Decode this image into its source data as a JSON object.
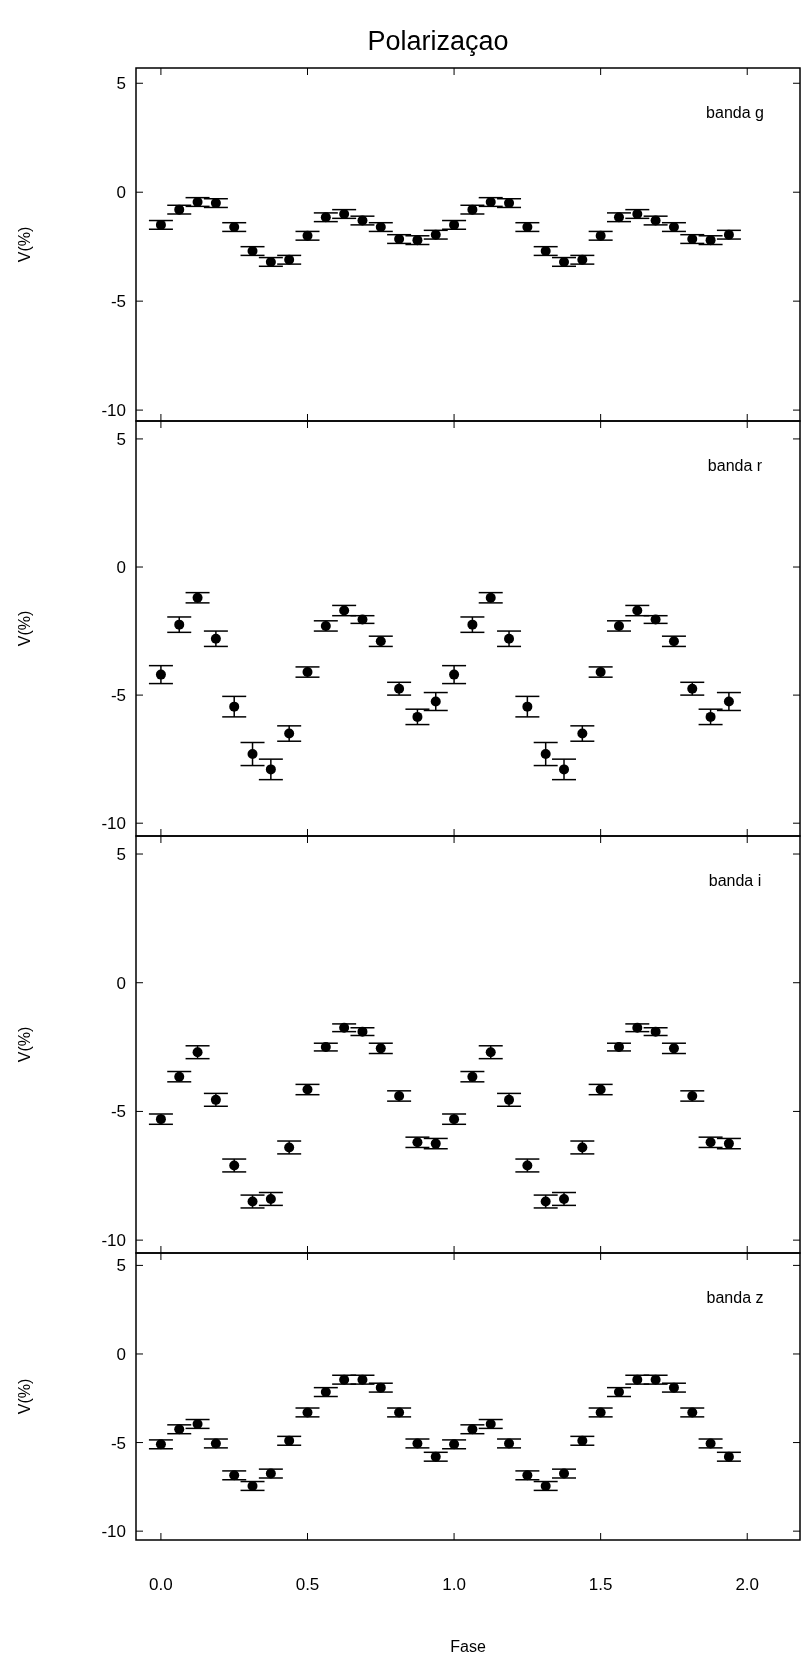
{
  "chart_data": [
    {
      "type": "scatter",
      "title": "Polarizaçao",
      "ylabel": "V(%)",
      "annotations": [
        "banda g"
      ],
      "marker": "circle",
      "tick_labels": "y",
      "xlim": [
        -0.085,
        2.18
      ],
      "ylim": [
        -10.5,
        5.7
      ],
      "xticks": [
        {
          "value": 0,
          "label": null
        },
        {
          "value": 0.5,
          "label": null
        },
        {
          "value": 1,
          "label": null
        },
        {
          "value": 1.5,
          "label": null
        },
        {
          "value": 2,
          "label": null
        }
      ],
      "yticks": [
        -10,
        -5,
        0,
        5
      ],
      "series": [
        {
          "color": "#000000",
          "x": [
            0,
            0.0625,
            0.125,
            0.1875,
            0.25,
            0.3125,
            0.375,
            0.4375,
            0.5,
            0.5625,
            0.625,
            0.6875,
            0.75,
            0.8125,
            0.875,
            0.9375,
            1,
            1.0625,
            1.125,
            1.1875,
            1.25,
            1.3125,
            1.375,
            1.4375,
            1.5,
            1.5625,
            1.625,
            1.6875,
            1.75,
            1.8125,
            1.875,
            1.9375
          ],
          "values": [
            -1.5,
            -0.8,
            -0.45,
            -0.5,
            -1.6,
            -2.7,
            -3.2,
            -3.1,
            -2.0,
            -1.15,
            -1.0,
            -1.3,
            -1.6,
            -2.15,
            -2.2,
            -1.95,
            -1.5,
            -0.8,
            -0.45,
            -0.5,
            -1.6,
            -2.7,
            -3.2,
            -3.1,
            -2.0,
            -1.15,
            -1.0,
            -1.3,
            -1.6,
            -2.15,
            -2.2,
            -1.95
          ],
          "errors": [
            0.2,
            0.2,
            0.2,
            0.2,
            0.2,
            0.2,
            0.2,
            0.2,
            0.2,
            0.2,
            0.2,
            0.2,
            0.2,
            0.2,
            0.2,
            0.2,
            0.2,
            0.2,
            0.2,
            0.2,
            0.2,
            0.2,
            0.2,
            0.2,
            0.2,
            0.2,
            0.2,
            0.2,
            0.2,
            0.2,
            0.2,
            0.2
          ]
        }
      ]
    },
    {
      "type": "scatter",
      "ylabel": "V(%)",
      "annotations": [
        "banda r"
      ],
      "marker": "circle",
      "tick_labels": "y",
      "xlim": [
        -0.085,
        2.18
      ],
      "ylim": [
        -10.5,
        5.7
      ],
      "xticks": [
        {
          "value": 0,
          "label": null
        },
        {
          "value": 0.5,
          "label": null
        },
        {
          "value": 1,
          "label": null
        },
        {
          "value": 1.5,
          "label": null
        },
        {
          "value": 2,
          "label": null
        }
      ],
      "yticks": [
        -10,
        -5,
        0,
        5
      ],
      "series": [
        {
          "color": "#000000",
          "x": [
            0,
            0.0625,
            0.125,
            0.1875,
            0.25,
            0.3125,
            0.375,
            0.4375,
            0.5,
            0.5625,
            0.625,
            0.6875,
            0.75,
            0.8125,
            0.875,
            0.9375,
            1,
            1.0625,
            1.125,
            1.1875,
            1.25,
            1.3125,
            1.375,
            1.4375,
            1.5,
            1.5625,
            1.625,
            1.6875,
            1.75,
            1.8125,
            1.875,
            1.9375
          ],
          "values": [
            -4.2,
            -2.25,
            -1.2,
            -2.8,
            -5.45,
            -7.3,
            -7.9,
            -6.5,
            -4.1,
            -2.3,
            -1.7,
            -2.05,
            -2.9,
            -4.75,
            -5.85,
            -5.25,
            -4.2,
            -2.25,
            -1.2,
            -2.8,
            -5.45,
            -7.3,
            -7.9,
            -6.5,
            -4.1,
            -2.3,
            -1.7,
            -2.05,
            -2.9,
            -4.75,
            -5.85,
            -5.25
          ],
          "errors": [
            0.35,
            0.3,
            0.2,
            0.3,
            0.4,
            0.45,
            0.4,
            0.3,
            0.2,
            0.2,
            0.2,
            0.15,
            0.2,
            0.25,
            0.3,
            0.35,
            0.35,
            0.3,
            0.2,
            0.3,
            0.4,
            0.45,
            0.4,
            0.3,
            0.2,
            0.2,
            0.2,
            0.15,
            0.2,
            0.25,
            0.3,
            0.35
          ]
        }
      ]
    },
    {
      "type": "scatter",
      "ylabel": "V(%)",
      "annotations": [
        "banda i"
      ],
      "marker": "circle",
      "tick_labels": "y",
      "xlim": [
        -0.085,
        2.18
      ],
      "ylim": [
        -10.5,
        5.7
      ],
      "xticks": [
        {
          "value": 0,
          "label": null
        },
        {
          "value": 0.5,
          "label": null
        },
        {
          "value": 1,
          "label": null
        },
        {
          "value": 1.5,
          "label": null
        },
        {
          "value": 2,
          "label": null
        }
      ],
      "yticks": [
        -10,
        -5,
        0,
        5
      ],
      "series": [
        {
          "color": "#000000",
          "x": [
            0,
            0.0625,
            0.125,
            0.1875,
            0.25,
            0.3125,
            0.375,
            0.4375,
            0.5,
            0.5625,
            0.625,
            0.6875,
            0.75,
            0.8125,
            0.875,
            0.9375,
            1,
            1.0625,
            1.125,
            1.1875,
            1.25,
            1.3125,
            1.375,
            1.4375,
            1.5,
            1.5625,
            1.625,
            1.6875,
            1.75,
            1.8125,
            1.875,
            1.9375
          ],
          "values": [
            -5.3,
            -3.65,
            -2.7,
            -4.55,
            -7.1,
            -8.5,
            -8.4,
            -6.4,
            -4.15,
            -2.5,
            -1.75,
            -1.9,
            -2.55,
            -4.4,
            -6.2,
            -6.25,
            -5.3,
            -3.65,
            -2.7,
            -4.55,
            -7.1,
            -8.5,
            -8.4,
            -6.4,
            -4.15,
            -2.5,
            -1.75,
            -1.9,
            -2.55,
            -4.4,
            -6.2,
            -6.25
          ],
          "errors": [
            0.2,
            0.2,
            0.25,
            0.25,
            0.25,
            0.25,
            0.25,
            0.25,
            0.2,
            0.15,
            0.15,
            0.15,
            0.2,
            0.2,
            0.2,
            0.2,
            0.2,
            0.2,
            0.25,
            0.25,
            0.25,
            0.25,
            0.25,
            0.25,
            0.2,
            0.15,
            0.15,
            0.15,
            0.2,
            0.2,
            0.2,
            0.2
          ]
        }
      ]
    },
    {
      "type": "scatter",
      "ylabel": "V(%)",
      "xlabel": "Fase",
      "annotations": [
        "banda z"
      ],
      "marker": "circle",
      "xlim": [
        -0.085,
        2.18
      ],
      "ylim": [
        -10.5,
        5.7
      ],
      "xticks": [
        {
          "value": 0,
          "label": "0.0"
        },
        {
          "value": 0.5,
          "label": "0.5"
        },
        {
          "value": 1,
          "label": "1.0"
        },
        {
          "value": 1.5,
          "label": "1.5"
        },
        {
          "value": 2,
          "label": "2.0"
        }
      ],
      "yticks": [
        -10,
        -5,
        0,
        5
      ],
      "series": [
        {
          "color": "#000000",
          "x": [
            0,
            0.0625,
            0.125,
            0.1875,
            0.25,
            0.3125,
            0.375,
            0.4375,
            0.5,
            0.5625,
            0.625,
            0.6875,
            0.75,
            0.8125,
            0.875,
            0.9375,
            1,
            1.0625,
            1.125,
            1.1875,
            1.25,
            1.3125,
            1.375,
            1.4375,
            1.5,
            1.5625,
            1.625,
            1.6875,
            1.75,
            1.8125,
            1.875,
            1.9375
          ],
          "values": [
            -5.1,
            -4.25,
            -3.95,
            -5.05,
            -6.85,
            -7.45,
            -6.75,
            -4.9,
            -3.3,
            -2.15,
            -1.45,
            -1.45,
            -1.9,
            -3.3,
            -5.05,
            -5.8,
            -5.1,
            -4.25,
            -3.95,
            -5.05,
            -6.85,
            -7.45,
            -6.75,
            -4.9,
            -3.3,
            -2.15,
            -1.45,
            -1.45,
            -1.9,
            -3.3,
            -5.05,
            -5.8
          ],
          "errors": [
            0.25,
            0.25,
            0.25,
            0.25,
            0.25,
            0.25,
            0.25,
            0.25,
            0.25,
            0.25,
            0.25,
            0.25,
            0.25,
            0.25,
            0.25,
            0.25,
            0.25,
            0.25,
            0.25,
            0.25,
            0.25,
            0.25,
            0.25,
            0.25,
            0.25,
            0.25,
            0.25,
            0.25,
            0.25,
            0.25,
            0.25,
            0.25
          ]
        }
      ]
    }
  ]
}
